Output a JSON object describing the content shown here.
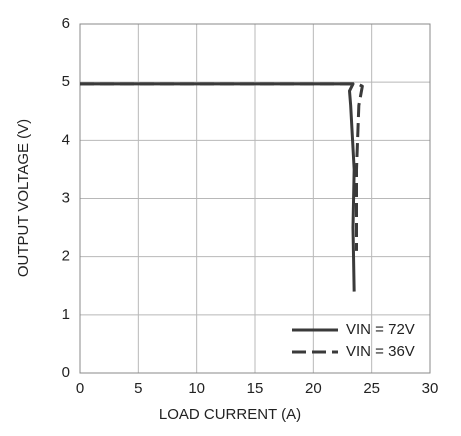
{
  "chart_data": {
    "type": "line",
    "x_label": "LOAD CURRENT (A)",
    "y_label": "OUTPUT VOLTAGE (V)",
    "xlim": [
      0,
      30
    ],
    "ylim": [
      0,
      6
    ],
    "xticks": [
      0,
      5,
      10,
      15,
      20,
      25,
      30
    ],
    "yticks": [
      0,
      1,
      2,
      3,
      4,
      5,
      6
    ],
    "grid": true,
    "legend": "lower right",
    "series": [
      {
        "name": "VIN = 72V",
        "color": "#3a3a3a",
        "line_style": "solid",
        "x": [
          0,
          23.4,
          23.1,
          23.2,
          23.5,
          23.4,
          23.5
        ],
        "values": [
          4.97,
          4.97,
          4.85,
          4.6,
          3.5,
          2.5,
          1.4
        ]
      },
      {
        "name": "VIN = 36V",
        "color": "#3a3a3a",
        "line_style": "dashed",
        "x": [
          0,
          23.8,
          24.2,
          23.9,
          23.7,
          23.7
        ],
        "values": [
          4.97,
          4.97,
          4.93,
          4.6,
          3.5,
          2.1
        ]
      }
    ]
  }
}
